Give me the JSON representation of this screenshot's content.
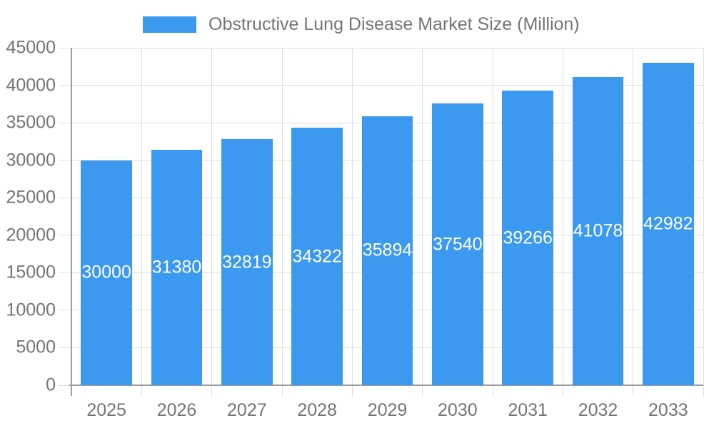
{
  "chart_data": {
    "type": "bar",
    "title": "Obstructive Lung Disease Market Size (Million)",
    "legend": {
      "label": "Obstructive Lung Disease Market Size (Million)",
      "position": "top"
    },
    "categories": [
      "2025",
      "2026",
      "2027",
      "2028",
      "2029",
      "2030",
      "2031",
      "2032",
      "2033"
    ],
    "series": [
      {
        "name": "Obstructive Lung Disease Market Size (Million)",
        "values": [
          30000,
          31380,
          32819,
          34322,
          35894,
          37540,
          39266,
          41078,
          42982
        ]
      }
    ],
    "value_labels": [
      "30000",
      "31380",
      "32819",
      "34322",
      "35894",
      "37540",
      "39266",
      "41078",
      "42982"
    ],
    "xlabel": "",
    "ylabel": "",
    "ylim": [
      0,
      45000
    ],
    "ytick_step": 5000,
    "ytick_labels": [
      "0",
      "5000",
      "10000",
      "15000",
      "20000",
      "25000",
      "30000",
      "35000",
      "40000",
      "45000"
    ],
    "grid": true,
    "colors": {
      "bar": "#3B99F0",
      "value_label": "#FFFFFF",
      "axis_text": "#757575",
      "gridline": "#DEDEDE",
      "axis_line": "#9E9E9E",
      "background": "#FFFFFF"
    }
  }
}
